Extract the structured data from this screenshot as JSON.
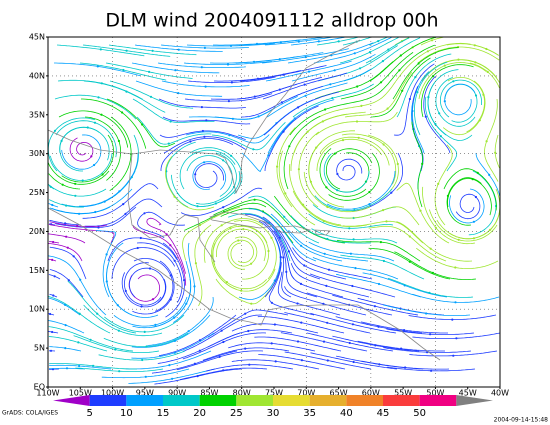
{
  "title": "DLM wind 2004091112 alldrop 00h",
  "lat_labels": [
    "45N",
    "40N",
    "35N",
    "30N",
    "25N",
    "20N",
    "15N",
    "10N",
    "5N",
    "EQ"
  ],
  "lon_labels": [
    "110W",
    "105W",
    "100W",
    "95W",
    "90W",
    "85W",
    "80W",
    "75W",
    "70W",
    "65W",
    "60W",
    "55W",
    "50W",
    "45W",
    "40W"
  ],
  "colorbar": {
    "labels": [
      5,
      10,
      15,
      20,
      25,
      30,
      35,
      40,
      45,
      50
    ],
    "colors": [
      "#a000c8",
      "#1e3cff",
      "#00a0ff",
      "#00c8c8",
      "#00d200",
      "#a0e632",
      "#e6dc32",
      "#e6af2d",
      "#f08228",
      "#fa3c3c",
      "#f00082",
      "#808080"
    ]
  },
  "footer_left": "GrADS: COLA/IGES",
  "footer_right": "2004-09-14-15:48"
}
